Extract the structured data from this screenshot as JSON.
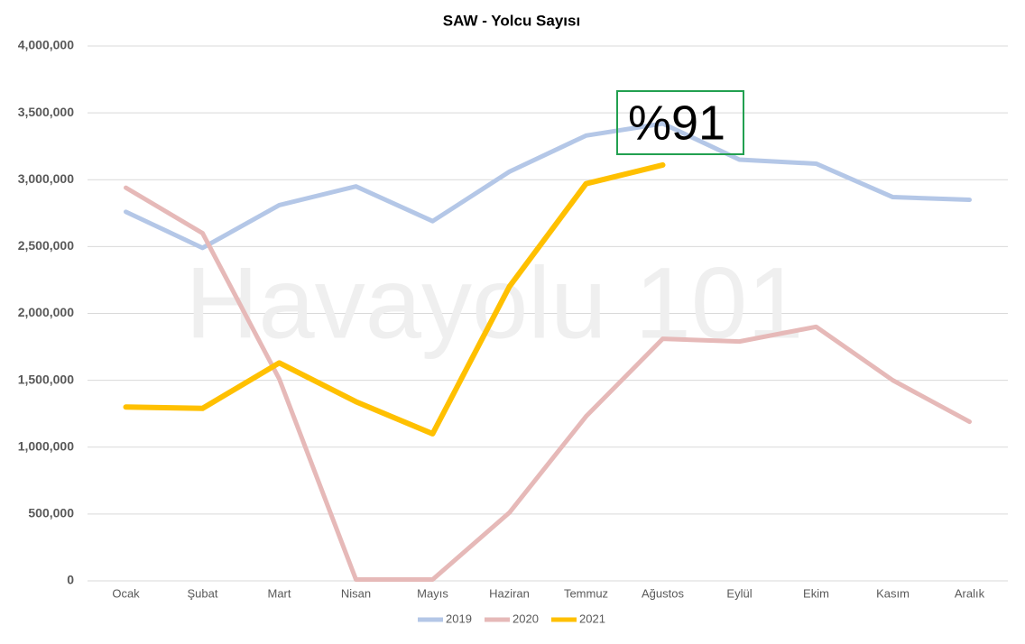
{
  "chart_data": {
    "type": "line",
    "title": "SAW - Yolcu Sayısı",
    "categories": [
      "Ocak",
      "Şubat",
      "Mart",
      "Nisan",
      "Mayıs",
      "Haziran",
      "Temmuz",
      "Ağustos",
      "Eylül",
      "Ekim",
      "Kasım",
      "Aralık"
    ],
    "series": [
      {
        "name": "2019",
        "color": "#b4c7e7",
        "values": [
          2760000,
          2490000,
          2810000,
          2950000,
          2690000,
          3060000,
          3330000,
          3420000,
          3150000,
          3120000,
          2870000,
          2850000
        ]
      },
      {
        "name": "2020",
        "color": "#e6b9b8",
        "values": [
          2940000,
          2600000,
          1510000,
          10000,
          10000,
          510000,
          1230000,
          1810000,
          1790000,
          1900000,
          1500000,
          1190000
        ]
      },
      {
        "name": "2021",
        "color": "#ffc000",
        "values": [
          1300000,
          1290000,
          1630000,
          1340000,
          1100000,
          2200000,
          2970000,
          3110000,
          null,
          null,
          null,
          null
        ]
      }
    ],
    "ylim": [
      0,
      4000000
    ],
    "yticks": [
      0,
      {
        "value": 500000,
        "label": "500,000"
      },
      {
        "value": 1000000,
        "label": "1,000,000"
      },
      {
        "value": 1500000,
        "label": "1,500,000"
      },
      {
        "value": 2000000,
        "label": "2,000,000"
      },
      {
        "value": 2500000,
        "label": "2,500,000"
      },
      {
        "value": 3000000,
        "label": "3,000,000"
      },
      {
        "value": 3500000,
        "label": "3,500,000"
      },
      {
        "value": 4000000,
        "label": "4,000,000"
      }
    ],
    "grid": true,
    "legend": "bottom",
    "annotation": "%91",
    "watermark": "Havayolu 101"
  }
}
